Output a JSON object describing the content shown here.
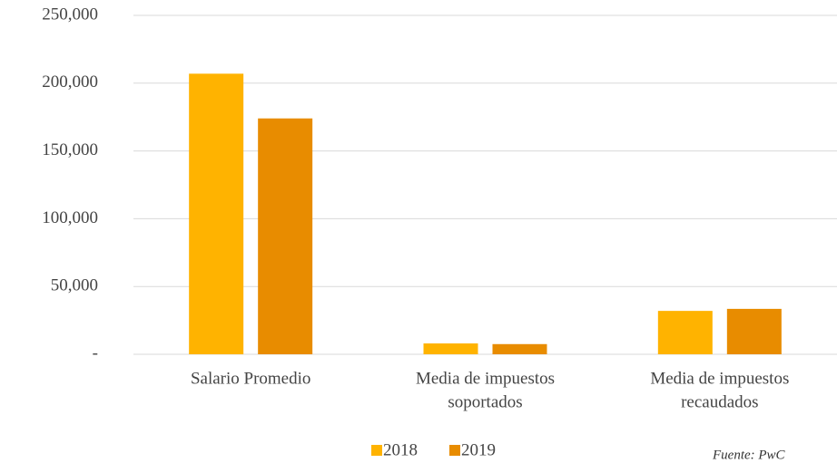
{
  "chart_data": {
    "type": "bar",
    "categories": [
      [
        "Salario Promedio"
      ],
      [
        "Media de impuestos",
        "soportados"
      ],
      [
        "Media de impuestos",
        "recaudados"
      ]
    ],
    "series": [
      {
        "name": "2018",
        "color": "#ffb300",
        "values": [
          207000,
          8000,
          32000
        ]
      },
      {
        "name": "2019",
        "color": "#e88c00",
        "values": [
          174000,
          7500,
          33500
        ]
      }
    ],
    "ylim": [
      0,
      250000
    ],
    "yticks": [
      {
        "value": 0,
        "label": "-"
      },
      {
        "value": 50000,
        "label": "50,000"
      },
      {
        "value": 100000,
        "label": "100,000"
      },
      {
        "value": 150000,
        "label": "150,000"
      },
      {
        "value": 200000,
        "label": "200,000"
      },
      {
        "value": 250000,
        "label": "250,000"
      }
    ],
    "grid": true,
    "legend": "bottom",
    "source": "Fuente: PwC"
  }
}
